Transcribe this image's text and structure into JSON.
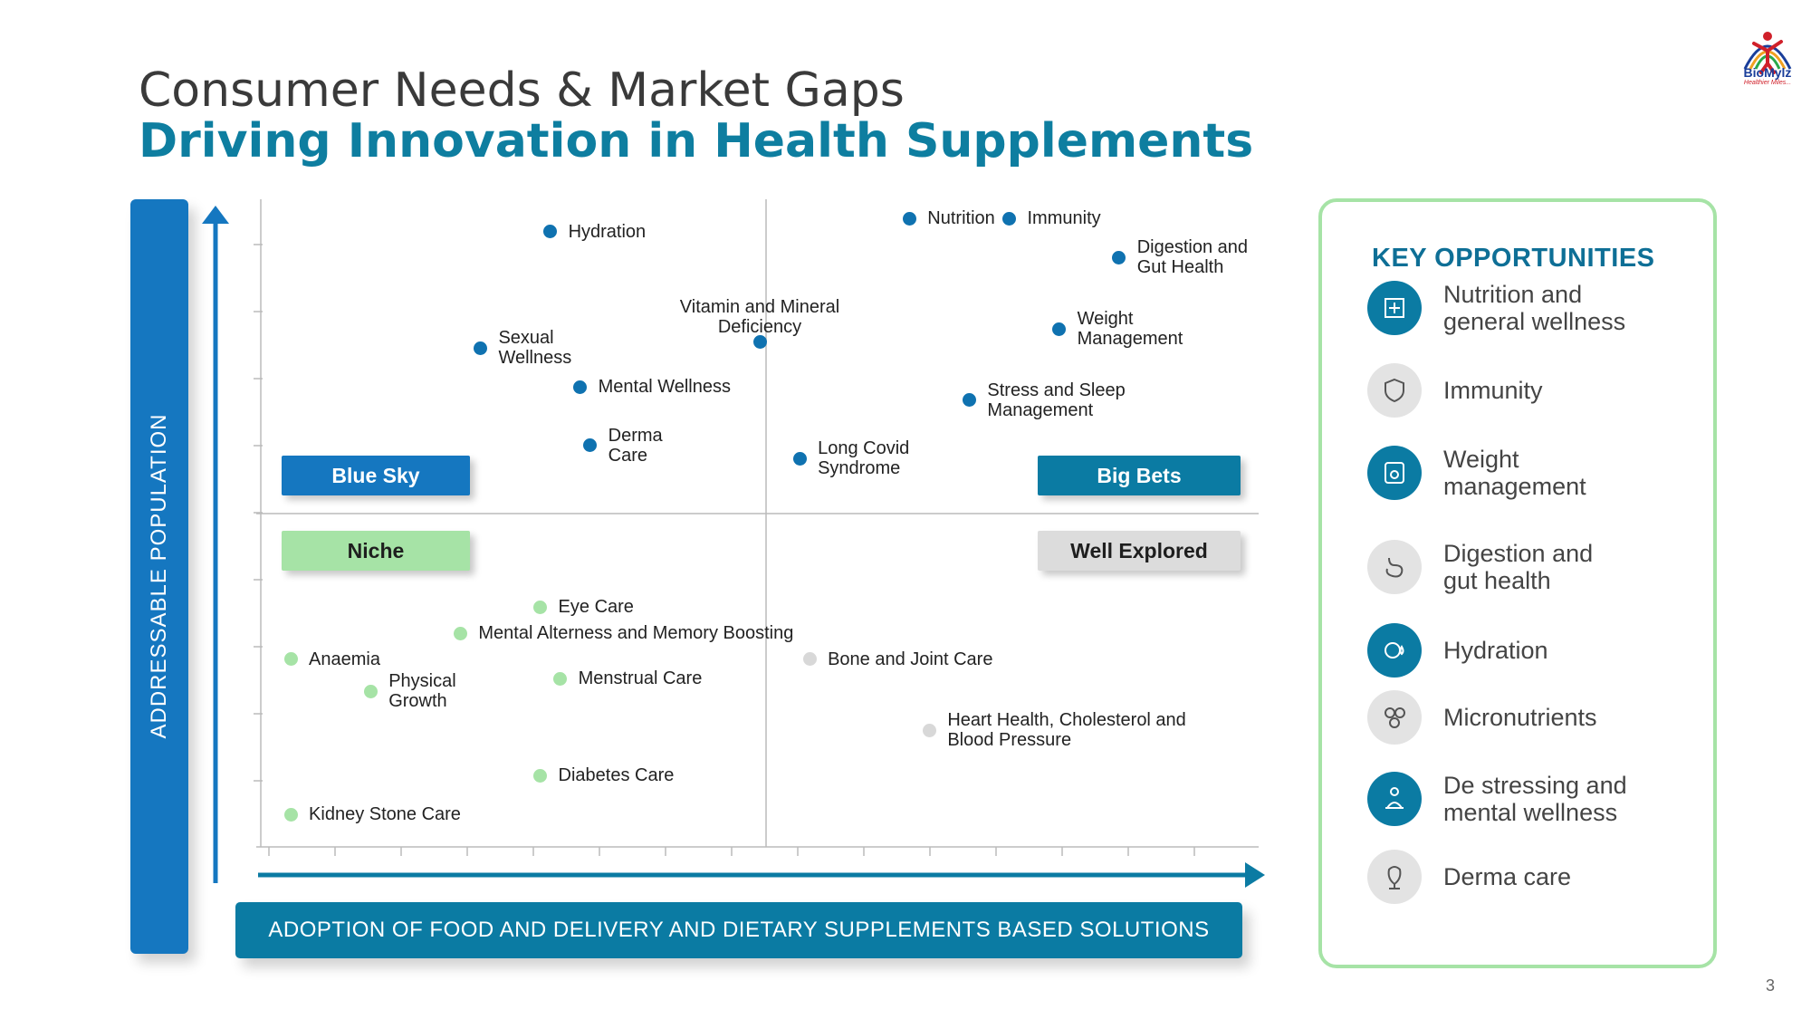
{
  "header": {
    "title_line1": "Consumer Needs & Market Gaps",
    "title_line2": "Driving Innovation in Health Supplements"
  },
  "logo": {
    "text": "BioMylz",
    "tagline": "Healthier Miles..."
  },
  "axes": {
    "y_label": "ADDRESSABLE POPULATION",
    "x_label": "ADOPTION OF FOOD AND DELIVERY AND DIETARY SUPPLEMENTS BASED SOLUTIONS"
  },
  "quadrants": {
    "blue_sky": "Blue Sky",
    "big_bets": "Big Bets",
    "niche": "Niche",
    "well_explored": "Well Explored"
  },
  "chart_data": {
    "type": "scatter",
    "title": "",
    "xlabel": "ADOPTION OF FOOD AND DELIVERY AND DIETARY SUPPLEMENTS BASED SOLUTIONS",
    "ylabel": "ADDRESSABLE POPULATION",
    "grid": false,
    "series": [
      {
        "name": "Blue Sky / Big Bets",
        "color": "#0f72b0",
        "points": [
          {
            "label": [
              "Hydration"
            ],
            "x": 0.29,
            "y": 0.95
          },
          {
            "label": [
              "Nutrition"
            ],
            "x": 0.65,
            "y": 0.97
          },
          {
            "label": [
              "Immunity"
            ],
            "x": 0.75,
            "y": 0.97
          },
          {
            "label": [
              "Digestion and",
              "Gut Health"
            ],
            "x": 0.86,
            "y": 0.91
          },
          {
            "label": [
              "Vitamin and Mineral",
              "Deficiency"
            ],
            "x": 0.5,
            "y": 0.78
          },
          {
            "label": [
              "Sexual",
              "Wellness"
            ],
            "x": 0.22,
            "y": 0.77
          },
          {
            "label": [
              "Weight",
              "Management"
            ],
            "x": 0.8,
            "y": 0.8
          },
          {
            "label": [
              "Mental Wellness"
            ],
            "x": 0.32,
            "y": 0.71
          },
          {
            "label": [
              "Stress and Sleep",
              "Management"
            ],
            "x": 0.71,
            "y": 0.69
          },
          {
            "label": [
              "Derma",
              "Care"
            ],
            "x": 0.33,
            "y": 0.62
          },
          {
            "label": [
              "Long Covid",
              "Syndrome"
            ],
            "x": 0.54,
            "y": 0.6
          }
        ]
      },
      {
        "name": "Niche",
        "color": "#a6e3a6",
        "points": [
          {
            "label": [
              "Eye Care"
            ],
            "x": 0.28,
            "y": 0.37
          },
          {
            "label": [
              "Mental Alterness and Memory Boosting"
            ],
            "x": 0.2,
            "y": 0.33
          },
          {
            "label": [
              "Anaemia"
            ],
            "x": 0.03,
            "y": 0.29
          },
          {
            "label": [
              "Physical",
              "Growth"
            ],
            "x": 0.11,
            "y": 0.24
          },
          {
            "label": [
              "Menstrual Care"
            ],
            "x": 0.3,
            "y": 0.26
          },
          {
            "label": [
              "Diabetes Care"
            ],
            "x": 0.28,
            "y": 0.11
          },
          {
            "label": [
              "Kidney Stone Care"
            ],
            "x": 0.03,
            "y": 0.05
          }
        ]
      },
      {
        "name": "Well Explored",
        "color": "#d8d8d8",
        "points": [
          {
            "label": [
              "Bone and Joint Care"
            ],
            "x": 0.55,
            "y": 0.29
          },
          {
            "label": [
              "Heart Health, Cholesterol and",
              "Blood Pressure"
            ],
            "x": 0.67,
            "y": 0.18
          }
        ]
      }
    ]
  },
  "key_opportunities": {
    "title": "KEY OPPORTUNITIES",
    "items": [
      {
        "label": [
          "Nutrition and",
          "general wellness"
        ],
        "icon": "nutrition-icon",
        "style": "blue"
      },
      {
        "label": [
          "Immunity"
        ],
        "icon": "shield-icon",
        "style": "grey"
      },
      {
        "label": [
          "Weight",
          "management"
        ],
        "icon": "scale-icon",
        "style": "blue"
      },
      {
        "label": [
          "Digestion and",
          "gut health"
        ],
        "icon": "stomach-icon",
        "style": "grey"
      },
      {
        "label": [
          "Hydration"
        ],
        "icon": "hydration-icon",
        "style": "blue"
      },
      {
        "label": [
          "Micronutrients"
        ],
        "icon": "minerals-icon",
        "style": "grey"
      },
      {
        "label": [
          "De stressing and",
          "mental wellness"
        ],
        "icon": "meditation-icon",
        "style": "blue"
      },
      {
        "label": [
          "Derma care"
        ],
        "icon": "face-icon",
        "style": "grey"
      }
    ]
  },
  "page_number": "3"
}
